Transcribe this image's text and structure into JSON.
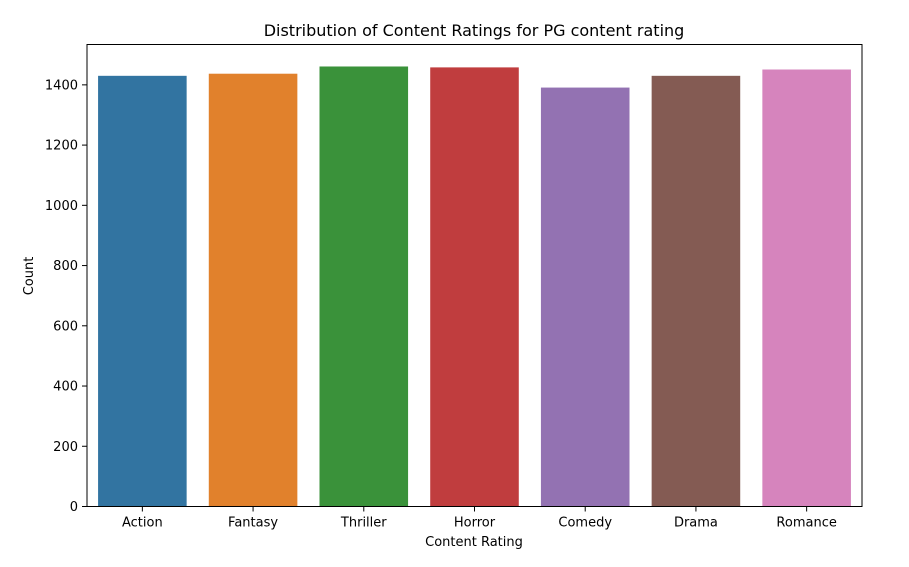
{
  "chart_data": {
    "type": "bar",
    "title": "Distribution of Content Ratings for PG content rating",
    "xlabel": "Content Rating",
    "ylabel": "Count",
    "categories": [
      "Action",
      "Fantasy",
      "Thriller",
      "Horror",
      "Comedy",
      "Drama",
      "Romance"
    ],
    "values": [
      1430,
      1437,
      1461,
      1458,
      1391,
      1430,
      1451
    ],
    "colors": [
      "#3274a1",
      "#e1812c",
      "#3a923a",
      "#c03d3e",
      "#9372b2",
      "#845b53",
      "#d684bd"
    ],
    "ylim": [
      0,
      1534
    ],
    "yticks": [
      0,
      200,
      400,
      600,
      800,
      1000,
      1200,
      1400
    ],
    "grid": false,
    "legend": false
  }
}
